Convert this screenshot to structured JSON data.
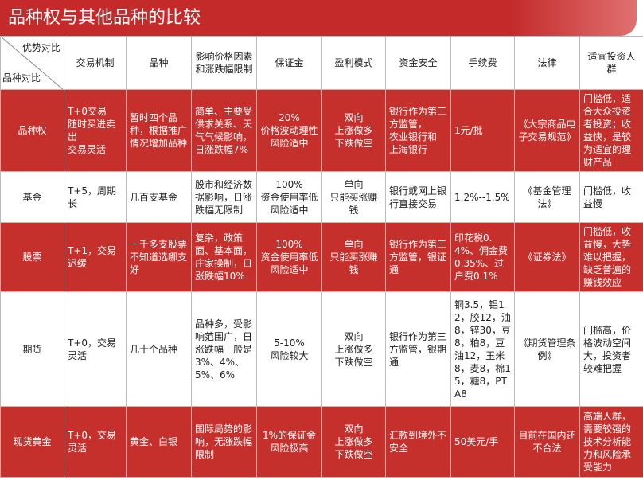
{
  "header": {
    "title": "品种权与其他品种的比较"
  },
  "table": {
    "corner_top": "优势对比",
    "corner_bottom": "品种对比",
    "columns": [
      "交易机制",
      "品种",
      "影响价格因素和涨跌幅限制",
      "保证金",
      "盈利模式",
      "资金安全",
      "手续费",
      "法律",
      "适宜投资人群"
    ],
    "rows": [
      {
        "label": "品种权",
        "cells": [
          "T+0交易\n随时买进卖出\n交易灵活",
          "暂时四个品种，根据推广情况增加品种",
          "简单、主要受供求关系、天气气候影响，日涨跌幅7%",
          "20%\n价格波动理性\n风险适中",
          "双向\n上涨做多\n下跌做空",
          "银行作为第三方监管，\n农业银行和\n上海银行",
          "1元/批",
          "《大宗商品电子交易规范》",
          "门槛低，适合大众投资者投资；收益快，是较为适宜的理财产品"
        ]
      },
      {
        "label": "基金",
        "cells": [
          "T+5，周期长",
          "几百支基金",
          "股市和经济数据影响，日涨跌幅无限制",
          "100%\n资金使用率低\n风险适中",
          "单向\n只能买涨赚钱",
          "银行或网上银行直接交易",
          "1.2%--1.5%",
          "《基金管理法》",
          "门槛低，收益慢"
        ]
      },
      {
        "label": "股票",
        "cells": [
          "T+1，交易迟缓",
          "一千多支股票不知道选哪支好",
          "复杂，政策面、基本面，庄家操制，日涨跌幅10%",
          "100%\n资金使用率低\n风险适中",
          "单向\n只能买涨赚钱",
          "银行作为第三方监管，银证通",
          "印花税0.4%、佣金费0.35%、过户费0.1%",
          "《证券法》",
          "门槛低，收益慢，大势难以把握，缺乏普遍的赚钱效应"
        ]
      },
      {
        "label": "期货",
        "cells": [
          "T+0，交易灵活",
          "几十个品种",
          "品种多，受影响范围广，日涨跌幅一般是3%、4%、5%、6%",
          "5-10%\n风险较大",
          "双向\n上涨做多\n下跌做空",
          "银行作为第三方监管，银期通",
          "铜3.5，铝12，胶12，油8，锌30，豆8，粕8，豆油12，玉米8，麦8，棉15，糖8，PTA8",
          "《期货管理条例》",
          "门槛高，价格波动空间大，投资者较难把握"
        ]
      },
      {
        "label": "现货黄金",
        "cells": [
          "T+0，交易灵活",
          "黄金、白银",
          "国际局势的影响，无涨跌幅限制",
          "1%的保证金\n风险极高",
          "双向\n上涨做多\n下跌做空",
          "汇款到境外不安全",
          "50美元/手",
          "目前在国内还不合法",
          "高端人群，需要较强的技术分析能力和风险承受能力"
        ]
      }
    ]
  }
}
